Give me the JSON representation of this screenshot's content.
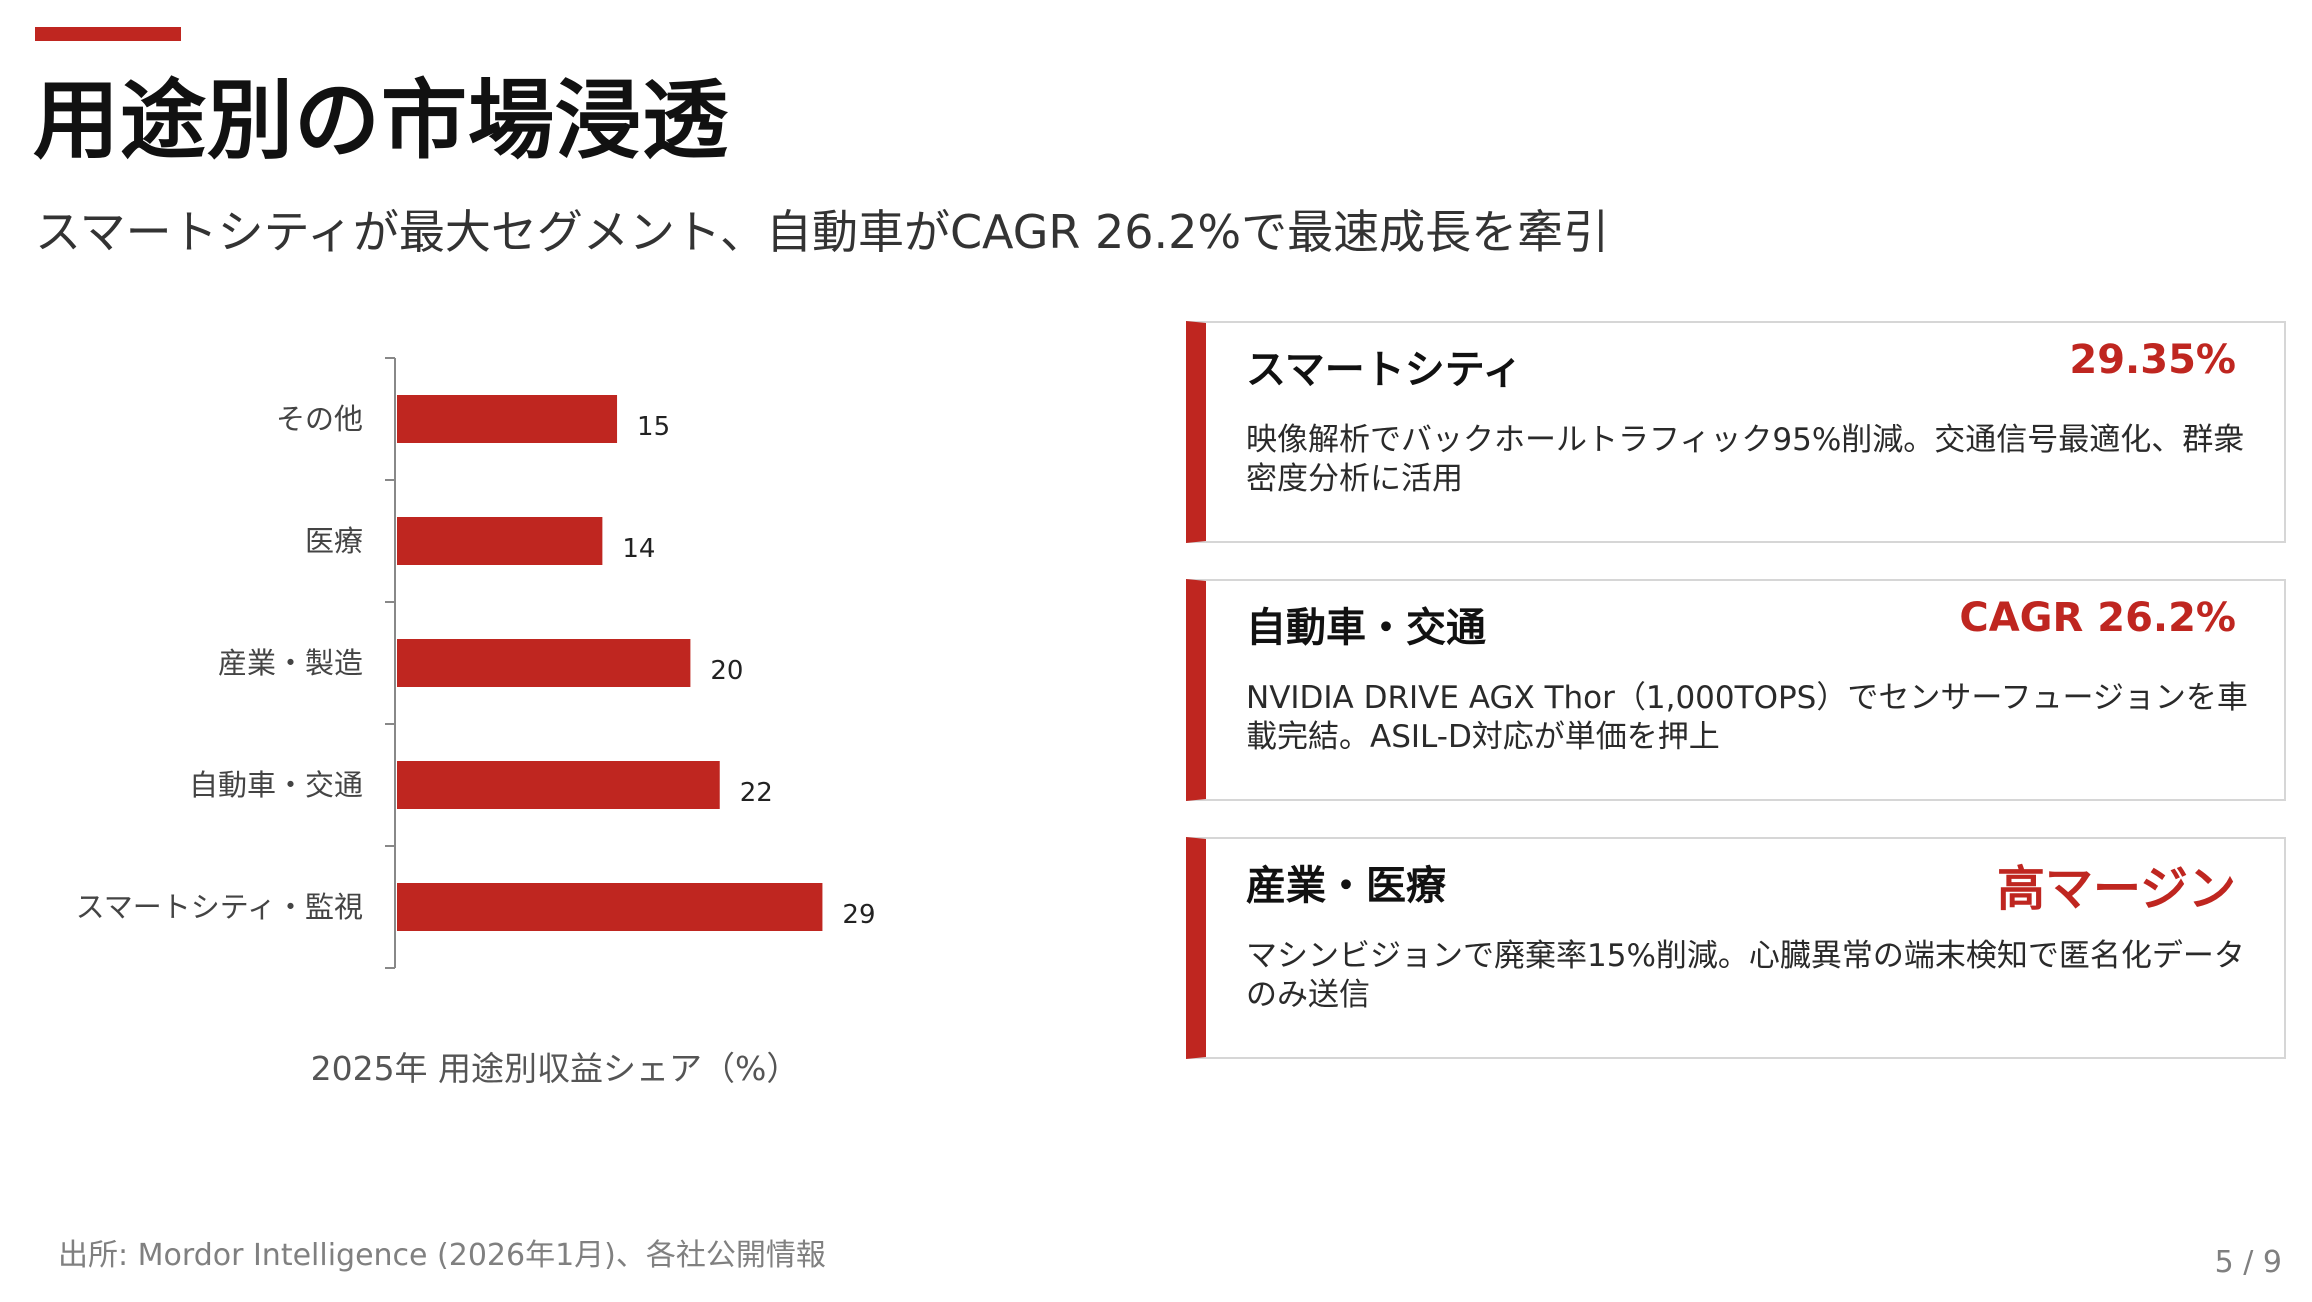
{
  "header": {
    "title": "用途別の市場浸透",
    "subtitle": "スマートシティが最大セグメント、自動車がCAGR 26.2%で最速成長を牽引"
  },
  "chart_data": {
    "type": "bar",
    "orientation": "horizontal",
    "categories": [
      "その他",
      "医療",
      "産業・製造",
      "自動車・交通",
      "スマートシティ・監視"
    ],
    "values": [
      15,
      14,
      20,
      22,
      29
    ],
    "data_labels": [
      "15",
      "14",
      "20",
      "22",
      "29"
    ],
    "caption": "2025年 用途別収益シェア（%）",
    "xlim": [
      0,
      35
    ],
    "grid": false,
    "bar_color": "#BF2620"
  },
  "cards": [
    {
      "title": "スマートシティ",
      "metric": "29.35%",
      "description": "映像解析でバックホールトラフィック95%削減。交通信号最適化、群衆密度分析に活用"
    },
    {
      "title": "自動車・交通",
      "metric": "CAGR 26.2%",
      "description": "NVIDIA DRIVE AGX Thor（1,000TOPS）でセンサーフュージョンを車載完結。ASIL-D対応が単価を押上"
    },
    {
      "title": "産業・医療",
      "metric": "高マージン",
      "description": "マシンビジョンで廃棄率15%削減。心臓異常の端末検知で匿名化データのみ送信"
    }
  ],
  "footer": {
    "source": "出所: Mordor Intelligence (2026年1月)、各社公開情報",
    "page": "5 / 9"
  },
  "colors": {
    "accent": "#BF2620"
  }
}
